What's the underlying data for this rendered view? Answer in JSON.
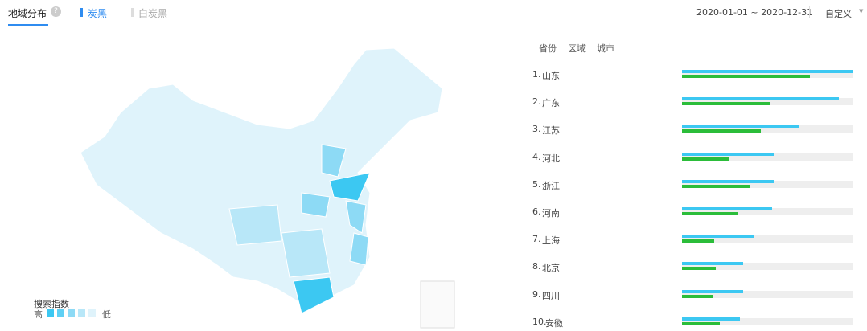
{
  "header": {
    "title": "地域分布",
    "help": "?",
    "tabs": [
      "炭黑",
      "白炭黑"
    ],
    "active_tab": 0,
    "date_range": "2020-01-01 ~ 2020-12-31",
    "custom": "自定义"
  },
  "map": {
    "legend_title": "搜索指数",
    "high": "高",
    "low": "低",
    "scale_colors": [
      "#3cc8f2",
      "#5fd0f4",
      "#8ddaf5",
      "#b8e7f8",
      "#dff3fb"
    ]
  },
  "ranking": {
    "tabs": [
      "省份",
      "区域",
      "城市"
    ],
    "blue_color": "#3cc8f2",
    "green_color": "#2bbd3a",
    "items": [
      {
        "rank": "1.",
        "name": "山东",
        "blue": 100,
        "green": 75
      },
      {
        "rank": "2.",
        "name": "广东",
        "blue": 92,
        "green": 52
      },
      {
        "rank": "3.",
        "name": "江苏",
        "blue": 69,
        "green": 46
      },
      {
        "rank": "4.",
        "name": "河北",
        "blue": 54,
        "green": 28
      },
      {
        "rank": "5.",
        "name": "浙江",
        "blue": 54,
        "green": 40
      },
      {
        "rank": "6.",
        "name": "河南",
        "blue": 53,
        "green": 33
      },
      {
        "rank": "7.",
        "name": "上海",
        "blue": 42,
        "green": 19
      },
      {
        "rank": "8.",
        "name": "北京",
        "blue": 36,
        "green": 20
      },
      {
        "rank": "9.",
        "name": "四川",
        "blue": 36,
        "green": 18
      },
      {
        "rank": "10.",
        "name": "安徽",
        "blue": 34,
        "green": 22
      }
    ]
  }
}
